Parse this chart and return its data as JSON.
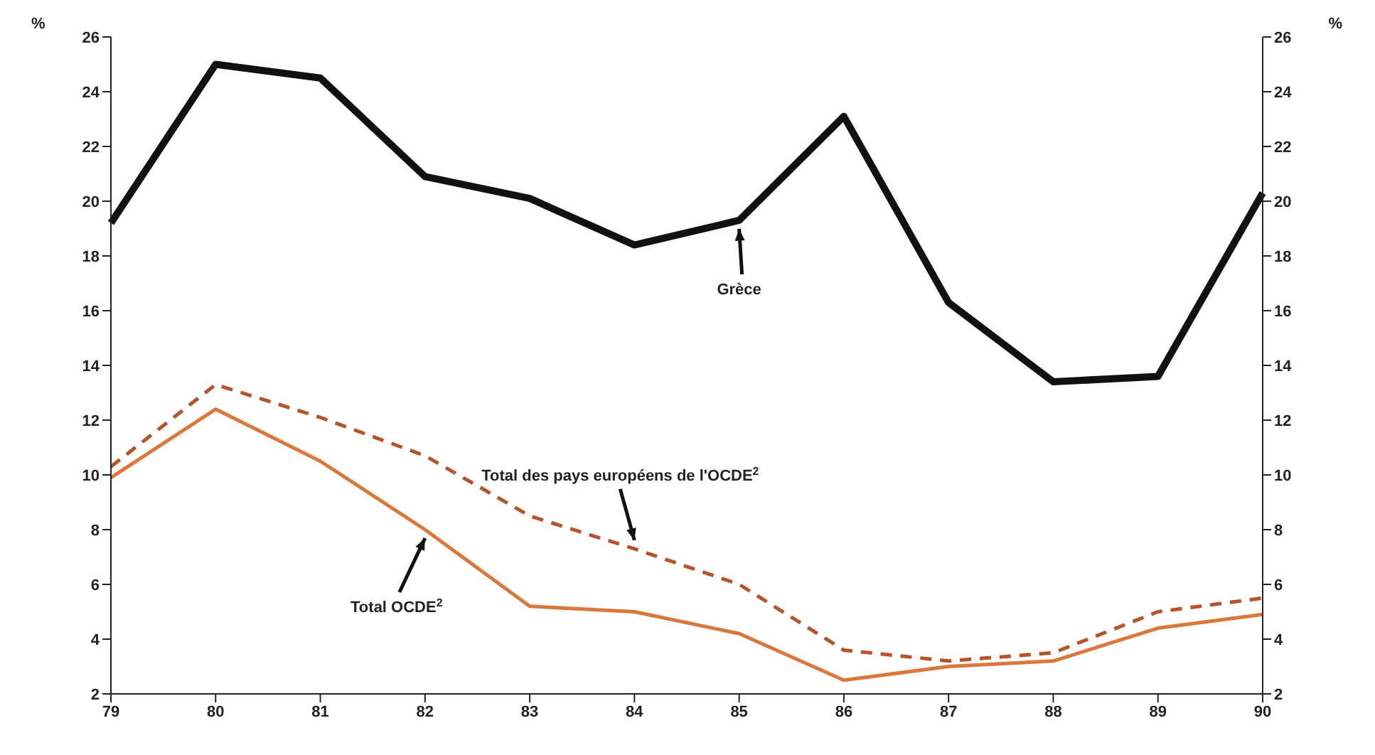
{
  "chart_data": {
    "type": "line",
    "categories": [
      "79",
      "80",
      "81",
      "82",
      "83",
      "84",
      "85",
      "86",
      "87",
      "88",
      "89",
      "90"
    ],
    "ylabel": "%",
    "y2label": "%",
    "ylim": [
      2,
      26
    ],
    "yticks": [
      2,
      4,
      6,
      8,
      10,
      12,
      14,
      16,
      18,
      20,
      22,
      24,
      26
    ],
    "y2lim": [
      2,
      26
    ],
    "y2ticks": [
      2,
      4,
      6,
      8,
      10,
      12,
      14,
      16,
      18,
      20,
      22,
      24,
      26
    ],
    "marker": "none",
    "grid": false,
    "series": [
      {
        "color": "#111111",
        "line_style": "solid",
        "values": [
          19.2,
          25.0,
          24.5,
          20.9,
          20.1,
          18.4,
          19.3,
          23.1,
          16.3,
          13.4,
          13.6,
          20.3
        ]
      },
      {
        "color": "#b5532a",
        "line_style": "dashed",
        "values": [
          10.3,
          13.3,
          12.1,
          10.7,
          8.5,
          7.3,
          6.0,
          3.6,
          3.2,
          3.5,
          5.0,
          5.5
        ]
      },
      {
        "color": "#d9783a",
        "line_style": "solid",
        "values": [
          9.9,
          12.4,
          10.5,
          8.0,
          5.2,
          5.0,
          4.2,
          2.5,
          3.0,
          3.2,
          4.4,
          4.9
        ]
      }
    ],
    "annotations": [
      {
        "text": "Grèce",
        "x": "85",
        "y": 19.3
      },
      {
        "text": "Total des pays européens de l'OCDE$^{2}$",
        "x": "84",
        "y": 7.3
      },
      {
        "text": "Total OCDE$^{2}$",
        "x": "82",
        "y": 8.0
      }
    ]
  }
}
